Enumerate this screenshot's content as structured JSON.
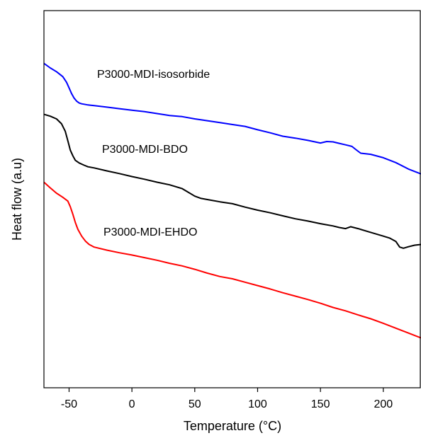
{
  "chart_data": {
    "type": "line",
    "xlabel": "Temperature (°C)",
    "ylabel": "Heat flow (a.u)",
    "xlim": [
      -70,
      230
    ],
    "ylim": [
      0,
      100
    ],
    "xticks": [
      -50,
      0,
      50,
      100,
      150,
      200
    ],
    "yticks_shown": false,
    "grid": false,
    "series": [
      {
        "name": "P3000-MDI-isosorbide",
        "color": "#0000ff",
        "x": [
          -70,
          -65,
          -60,
          -55,
          -52,
          -50,
          -48,
          -46,
          -44,
          -42,
          -40,
          -35,
          -30,
          -20,
          -10,
          0,
          10,
          20,
          30,
          40,
          50,
          60,
          70,
          80,
          90,
          100,
          110,
          120,
          130,
          140,
          150,
          155,
          160,
          165,
          170,
          175,
          178,
          182,
          190,
          200,
          210,
          220,
          230
        ],
        "y": [
          86.0,
          84.8,
          83.8,
          82.5,
          81.0,
          79.5,
          78.0,
          76.8,
          76.0,
          75.5,
          75.3,
          75.0,
          74.8,
          74.4,
          74.0,
          73.6,
          73.2,
          72.7,
          72.2,
          71.9,
          71.3,
          70.8,
          70.3,
          69.8,
          69.3,
          68.4,
          67.6,
          66.7,
          66.2,
          65.6,
          64.9,
          65.3,
          65.2,
          64.8,
          64.4,
          64.0,
          63.2,
          62.2,
          61.9,
          61.0,
          59.7,
          58.0,
          56.7
        ]
      },
      {
        "name": "P3000-MDI-BDO",
        "color": "#000000",
        "x": [
          -70,
          -65,
          -60,
          -56,
          -53,
          -51,
          -49,
          -47,
          -45,
          -42,
          -38,
          -35,
          -30,
          -20,
          -10,
          0,
          10,
          20,
          30,
          40,
          45,
          50,
          55,
          60,
          70,
          80,
          90,
          100,
          110,
          120,
          130,
          140,
          150,
          160,
          165,
          170,
          174,
          180,
          190,
          200,
          205,
          210,
          213,
          216,
          220,
          225,
          230
        ],
        "y": [
          72.5,
          72.0,
          71.3,
          70.0,
          68.0,
          65.5,
          63.0,
          61.5,
          60.3,
          59.6,
          59.0,
          58.6,
          58.3,
          57.5,
          56.8,
          56.0,
          55.3,
          54.5,
          53.8,
          52.8,
          51.8,
          50.8,
          50.2,
          49.9,
          49.3,
          48.8,
          47.9,
          47.1,
          46.4,
          45.6,
          44.8,
          44.2,
          43.5,
          42.9,
          42.5,
          42.2,
          42.7,
          42.2,
          41.2,
          40.2,
          39.7,
          38.8,
          37.3,
          37.0,
          37.4,
          37.8,
          38.0
        ]
      },
      {
        "name": "P3000-MDI-EHDO",
        "color": "#ff0000",
        "x": [
          -70,
          -65,
          -60,
          -55,
          -51,
          -49,
          -47,
          -45,
          -43,
          -40,
          -37,
          -34,
          -30,
          -20,
          -10,
          0,
          10,
          20,
          30,
          40,
          50,
          60,
          70,
          80,
          90,
          100,
          110,
          120,
          130,
          140,
          150,
          160,
          170,
          180,
          190,
          200,
          210,
          220,
          230
        ],
        "y": [
          54.5,
          53.0,
          51.6,
          50.5,
          49.5,
          48.0,
          46.0,
          43.8,
          42.0,
          40.2,
          38.9,
          38.0,
          37.3,
          36.5,
          35.8,
          35.2,
          34.5,
          33.8,
          33.0,
          32.3,
          31.4,
          30.4,
          29.5,
          28.9,
          28.0,
          27.1,
          26.2,
          25.2,
          24.3,
          23.4,
          22.4,
          21.3,
          20.4,
          19.3,
          18.3,
          17.1,
          15.8,
          14.5,
          13.2
        ]
      }
    ]
  }
}
